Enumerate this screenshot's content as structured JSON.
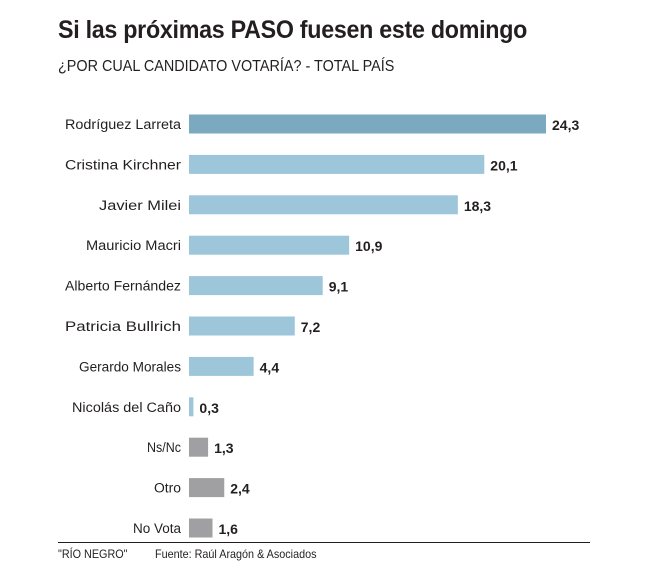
{
  "header": {
    "title": "Si las próximas PASO fuesen este domingo",
    "subtitle": "¿POR CUAL CANDIDATO VOTARÍA? - TOTAL PAÍS"
  },
  "footer": {
    "credit": "\"RÍO NEGRO\"",
    "source": "Fuente: Raúl Aragón & Asociados"
  },
  "colors": {
    "highlight": "#7aa9c0",
    "candidate": "#9ec6db",
    "other": "#a0a0a2",
    "text": "#231f20"
  },
  "chart_data": {
    "type": "bar",
    "orientation": "horizontal",
    "title": "Si las próximas PASO fuesen este domingo",
    "subtitle": "¿POR CUAL CANDIDATO VOTARÍA? - TOTAL PAÍS",
    "xlabel": "",
    "ylabel": "",
    "grid": false,
    "categories": [
      "Rodríguez Larreta",
      "Cristina Kirchner",
      "Javier Milei",
      "Mauricio Macri",
      "Alberto Fernández",
      "Patricia Bullrich",
      "Gerardo Morales",
      "Nicolás del Caño",
      "Ns/Nc",
      "Otro",
      "No Vota"
    ],
    "values": [
      24.3,
      20.1,
      18.3,
      10.9,
      9.1,
      7.2,
      4.4,
      0.3,
      1.3,
      2.4,
      1.6
    ],
    "value_labels": [
      "24,3",
      "20,1",
      "18,3",
      "10,9",
      "9,1",
      "7,2",
      "4,4",
      "0,3",
      "1,3",
      "2,4",
      "1,6"
    ],
    "groups": [
      "highlight",
      "candidate",
      "candidate",
      "candidate",
      "candidate",
      "candidate",
      "candidate",
      "candidate",
      "other",
      "other",
      "other"
    ],
    "xlim": [
      0,
      24.3
    ]
  }
}
